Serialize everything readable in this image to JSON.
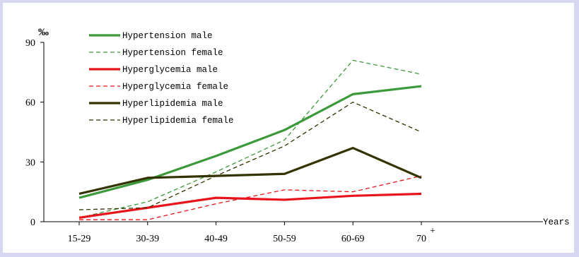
{
  "chart_data": {
    "type": "line",
    "categories": [
      "15-29",
      "30-39",
      "40-49",
      "50-59",
      "60-69",
      "70"
    ],
    "last_category_superscript": "+",
    "ylabel": "‰",
    "xlabel": "Years",
    "ylim": [
      0,
      90
    ],
    "yticks": [
      0,
      30,
      60,
      90
    ],
    "grid": false,
    "legend_position": "top-left",
    "series": [
      {
        "name": "Hypertension male",
        "color": "#3a9a3a",
        "style": "solid",
        "values": [
          12,
          21,
          33,
          46,
          64,
          68
        ]
      },
      {
        "name": "Hypertension female",
        "color": "#3a9a3a",
        "style": "dashed",
        "values": [
          2,
          10,
          25,
          41,
          81,
          74
        ]
      },
      {
        "name": "Hyperglycemia male",
        "color": "#e8141c",
        "style": "solid",
        "values": [
          2,
          7,
          12,
          11,
          13,
          14
        ]
      },
      {
        "name": "Hyperglycemia female",
        "color": "#e8141c",
        "style": "dashed",
        "values": [
          1,
          1,
          9,
          16,
          15,
          23
        ]
      },
      {
        "name": "Hyperlipidemia male",
        "color": "#333300",
        "style": "solid",
        "values": [
          14,
          22,
          23,
          24,
          37,
          22
        ]
      },
      {
        "name": "Hyperlipidemia female",
        "color": "#333300",
        "style": "dashed",
        "values": [
          6,
          7,
          23,
          38,
          60,
          45
        ]
      }
    ]
  }
}
